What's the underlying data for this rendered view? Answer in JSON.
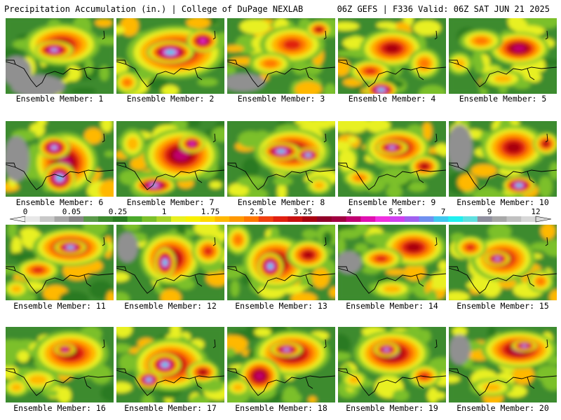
{
  "header": {
    "title": "Precipitation Accumulation (in.) | College of DuPage NEXLAB",
    "run_info": "06Z GEFS | F336 Valid: 06Z SAT JUN 21 2025"
  },
  "colorbar": {
    "labels": [
      "0",
      "0.05",
      "0.25",
      "1",
      "1.75",
      "2.5",
      "3.25",
      "4",
      "5.5",
      "7",
      "9",
      "12"
    ],
    "colors": [
      "#e8e8e8",
      "#c8c8c8",
      "#a8a8a8",
      "#888888",
      "#5a9a4a",
      "#3d8b2f",
      "#2a7a22",
      "#4aa82a",
      "#7cc02a",
      "#aad42a",
      "#e8f020",
      "#f8f000",
      "#ffd800",
      "#ffb800",
      "#ff9800",
      "#ff7800",
      "#f04010",
      "#e02010",
      "#c81010",
      "#a80010",
      "#900028",
      "#a00040",
      "#c00070",
      "#e010b0",
      "#f030e0",
      "#d040f0",
      "#a060f0",
      "#7090f0",
      "#40c8f0",
      "#20f0f0",
      "#60e0e0",
      "#9090a0",
      "#a8a8a8",
      "#c0c0c0",
      "#d8d8d8"
    ]
  },
  "members": [
    {
      "label": "Ensemble Member: 1",
      "blobs": [
        [
          0.52,
          0.35,
          0.35,
          0.28,
          5
        ],
        [
          0.45,
          0.42,
          0.18,
          0.12,
          8
        ],
        [
          0.1,
          0.7,
          0.14,
          0.2,
          -1
        ],
        [
          0.3,
          0.9,
          0.25,
          0.15,
          -1
        ]
      ]
    },
    {
      "label": "Ensemble Member: 2",
      "blobs": [
        [
          0.55,
          0.45,
          0.45,
          0.35,
          6
        ],
        [
          0.5,
          0.45,
          0.22,
          0.15,
          9
        ],
        [
          0.8,
          0.3,
          0.15,
          0.15,
          7
        ],
        [
          0.1,
          0.85,
          0.12,
          0.15,
          3
        ]
      ]
    },
    {
      "label": "Ensemble Member: 3",
      "blobs": [
        [
          0.6,
          0.35,
          0.3,
          0.25,
          4
        ],
        [
          0.4,
          0.6,
          0.2,
          0.15,
          3
        ],
        [
          0.15,
          0.85,
          0.2,
          0.12,
          -1
        ],
        [
          0.85,
          0.15,
          0.12,
          0.12,
          5
        ]
      ]
    },
    {
      "label": "Ensemble Member: 4",
      "blobs": [
        [
          0.5,
          0.4,
          0.3,
          0.25,
          5
        ],
        [
          0.4,
          0.95,
          0.15,
          0.12,
          9
        ],
        [
          0.3,
          0.7,
          0.2,
          0.15,
          4
        ],
        [
          0.8,
          0.6,
          0.15,
          0.2,
          3
        ]
      ]
    },
    {
      "label": "Ensemble Member: 5",
      "blobs": [
        [
          0.65,
          0.4,
          0.28,
          0.22,
          6
        ],
        [
          0.3,
          0.3,
          0.2,
          0.15,
          3
        ],
        [
          0.5,
          0.8,
          0.2,
          0.12,
          2
        ],
        [
          0.1,
          0.6,
          0.12,
          0.15,
          2
        ]
      ]
    },
    {
      "label": "Ensemble Member: 6",
      "blobs": [
        [
          0.55,
          0.55,
          0.3,
          0.4,
          6
        ],
        [
          0.5,
          0.75,
          0.15,
          0.2,
          9
        ],
        [
          0.1,
          0.5,
          0.12,
          0.3,
          -1
        ],
        [
          0.45,
          0.35,
          0.15,
          0.15,
          8
        ]
      ]
    },
    {
      "label": "Ensemble Member: 7",
      "blobs": [
        [
          0.6,
          0.45,
          0.35,
          0.35,
          6
        ],
        [
          0.35,
          0.85,
          0.2,
          0.12,
          8
        ],
        [
          0.7,
          0.3,
          0.12,
          0.12,
          7
        ],
        [
          0.15,
          0.3,
          0.12,
          0.2,
          2
        ]
      ]
    },
    {
      "label": "Ensemble Member: 8",
      "blobs": [
        [
          0.6,
          0.4,
          0.35,
          0.3,
          6
        ],
        [
          0.5,
          0.4,
          0.18,
          0.12,
          9
        ],
        [
          0.75,
          0.45,
          0.12,
          0.1,
          9
        ],
        [
          0.85,
          0.85,
          0.12,
          0.12,
          2
        ]
      ]
    },
    {
      "label": "Ensemble Member: 9",
      "blobs": [
        [
          0.55,
          0.35,
          0.3,
          0.25,
          6
        ],
        [
          0.5,
          0.35,
          0.15,
          0.1,
          8
        ],
        [
          0.8,
          0.6,
          0.15,
          0.15,
          5
        ],
        [
          0.2,
          0.75,
          0.15,
          0.12,
          3
        ]
      ]
    },
    {
      "label": "Ensemble Member: 10",
      "blobs": [
        [
          0.6,
          0.35,
          0.3,
          0.3,
          5
        ],
        [
          0.65,
          0.85,
          0.15,
          0.12,
          9
        ],
        [
          0.1,
          0.35,
          0.12,
          0.3,
          -1
        ],
        [
          0.9,
          0.3,
          0.12,
          0.15,
          5
        ]
      ]
    },
    {
      "label": "Ensemble Member: 11",
      "blobs": [
        [
          0.6,
          0.3,
          0.35,
          0.25,
          6
        ],
        [
          0.6,
          0.3,
          0.15,
          0.1,
          9
        ],
        [
          0.3,
          0.6,
          0.2,
          0.15,
          4
        ],
        [
          0.1,
          0.85,
          0.12,
          0.12,
          2
        ]
      ]
    },
    {
      "label": "Ensemble Member: 12",
      "blobs": [
        [
          0.5,
          0.45,
          0.28,
          0.35,
          6
        ],
        [
          0.45,
          0.5,
          0.1,
          0.2,
          9
        ],
        [
          0.85,
          0.35,
          0.15,
          0.2,
          4
        ],
        [
          0.1,
          0.3,
          0.1,
          0.2,
          -1
        ]
      ]
    },
    {
      "label": "Ensemble Member: 13",
      "blobs": [
        [
          0.45,
          0.5,
          0.3,
          0.35,
          6
        ],
        [
          0.4,
          0.55,
          0.12,
          0.18,
          9
        ],
        [
          0.75,
          0.4,
          0.2,
          0.2,
          5
        ],
        [
          0.1,
          0.2,
          0.12,
          0.2,
          3
        ]
      ]
    },
    {
      "label": "Ensemble Member: 14",
      "blobs": [
        [
          0.7,
          0.3,
          0.3,
          0.25,
          5
        ],
        [
          0.4,
          0.45,
          0.2,
          0.15,
          4
        ],
        [
          0.1,
          0.5,
          0.12,
          0.15,
          -1
        ],
        [
          0.5,
          0.85,
          0.2,
          0.12,
          2
        ]
      ]
    },
    {
      "label": "Ensemble Member: 15",
      "blobs": [
        [
          0.5,
          0.45,
          0.3,
          0.3,
          5
        ],
        [
          0.45,
          0.45,
          0.12,
          0.1,
          8
        ],
        [
          0.2,
          0.3,
          0.15,
          0.15,
          4
        ],
        [
          0.85,
          0.75,
          0.12,
          0.15,
          3
        ]
      ]
    },
    {
      "label": "Ensemble Member: 16",
      "blobs": [
        [
          0.6,
          0.35,
          0.35,
          0.3,
          5
        ],
        [
          0.55,
          0.3,
          0.1,
          0.08,
          7
        ],
        [
          0.3,
          0.7,
          0.2,
          0.15,
          2
        ],
        [
          0.1,
          0.8,
          0.12,
          0.12,
          2
        ]
      ]
    },
    {
      "label": "Ensemble Member: 17",
      "blobs": [
        [
          0.5,
          0.5,
          0.35,
          0.35,
          6
        ],
        [
          0.45,
          0.5,
          0.15,
          0.15,
          9
        ],
        [
          0.3,
          0.7,
          0.12,
          0.12,
          9
        ],
        [
          0.8,
          0.6,
          0.15,
          0.15,
          5
        ]
      ]
    },
    {
      "label": "Ensemble Member: 18",
      "blobs": [
        [
          0.6,
          0.35,
          0.35,
          0.3,
          6
        ],
        [
          0.55,
          0.3,
          0.15,
          0.1,
          8
        ],
        [
          0.3,
          0.65,
          0.2,
          0.25,
          6
        ],
        [
          0.1,
          0.8,
          0.12,
          0.12,
          2
        ]
      ]
    },
    {
      "label": "Ensemble Member: 19",
      "blobs": [
        [
          0.5,
          0.35,
          0.35,
          0.3,
          6
        ],
        [
          0.45,
          0.3,
          0.12,
          0.1,
          8
        ],
        [
          0.8,
          0.65,
          0.15,
          0.15,
          4
        ],
        [
          0.15,
          0.7,
          0.12,
          0.12,
          2
        ]
      ]
    },
    {
      "label": "Ensemble Member: 20",
      "blobs": [
        [
          0.65,
          0.3,
          0.35,
          0.25,
          6
        ],
        [
          0.7,
          0.25,
          0.12,
          0.08,
          8
        ],
        [
          0.1,
          0.3,
          0.1,
          0.2,
          -1
        ],
        [
          0.4,
          0.8,
          0.2,
          0.12,
          2
        ]
      ]
    }
  ]
}
